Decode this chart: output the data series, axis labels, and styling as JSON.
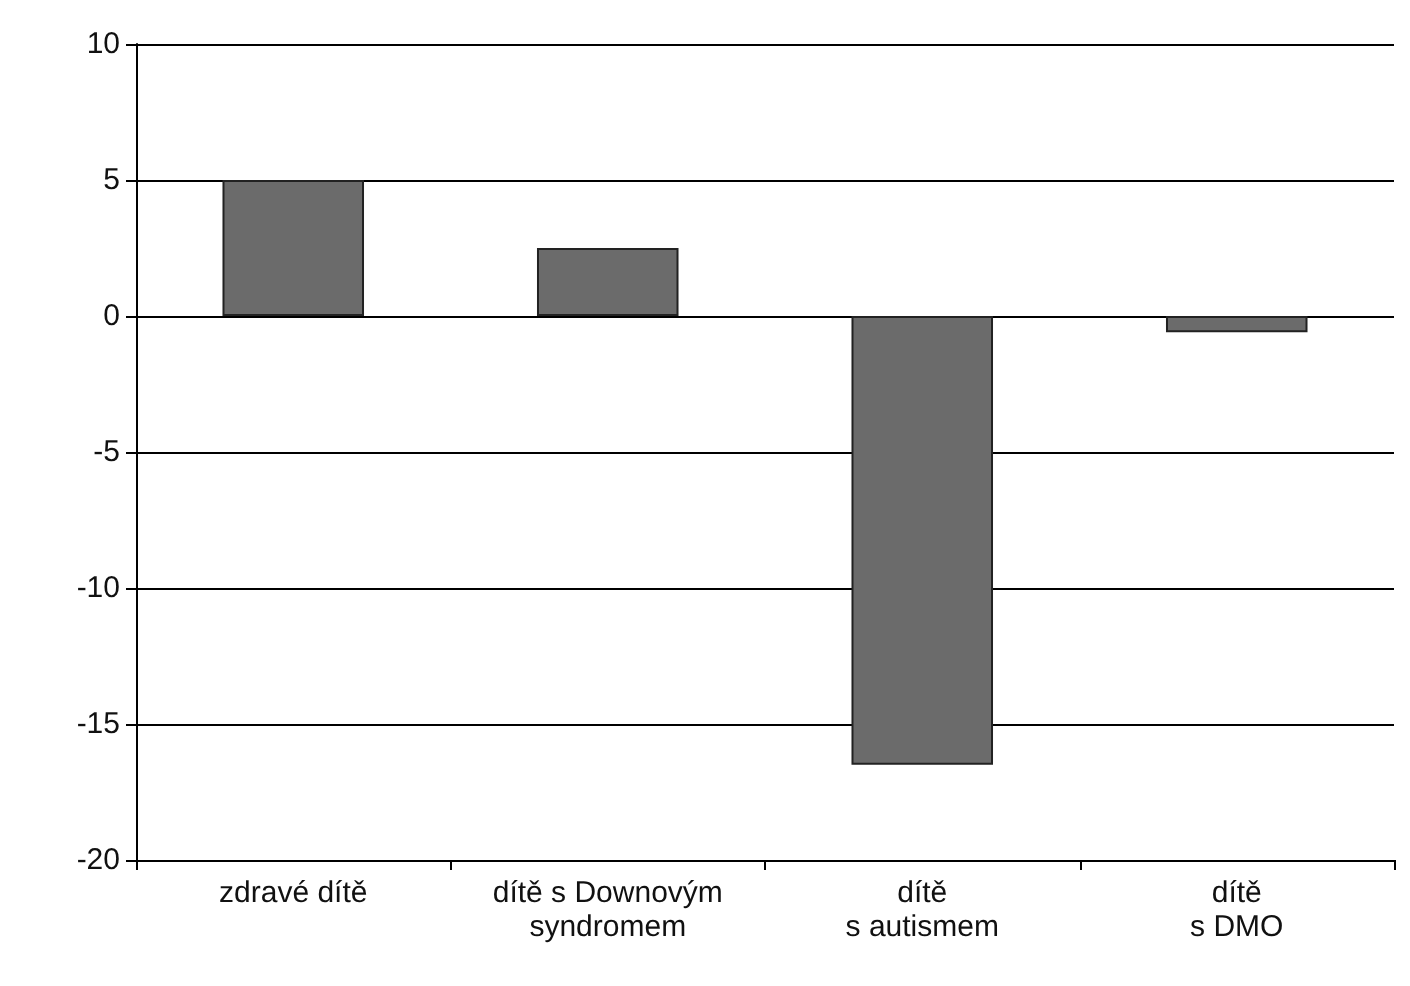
{
  "chart_data": {
    "type": "bar",
    "categories": [
      "zdravé dítě",
      "dítě s Downovým\nsyndromem",
      "dítě\ns autismem",
      "dítě\ns DMO"
    ],
    "values": [
      5,
      2.5,
      -16.5,
      -0.6
    ],
    "color": "#6b6b6b",
    "ylim": [
      -20,
      10
    ],
    "yticks": [
      -20,
      -15,
      -10,
      -5,
      0,
      5,
      10
    ],
    "grid": "y"
  }
}
